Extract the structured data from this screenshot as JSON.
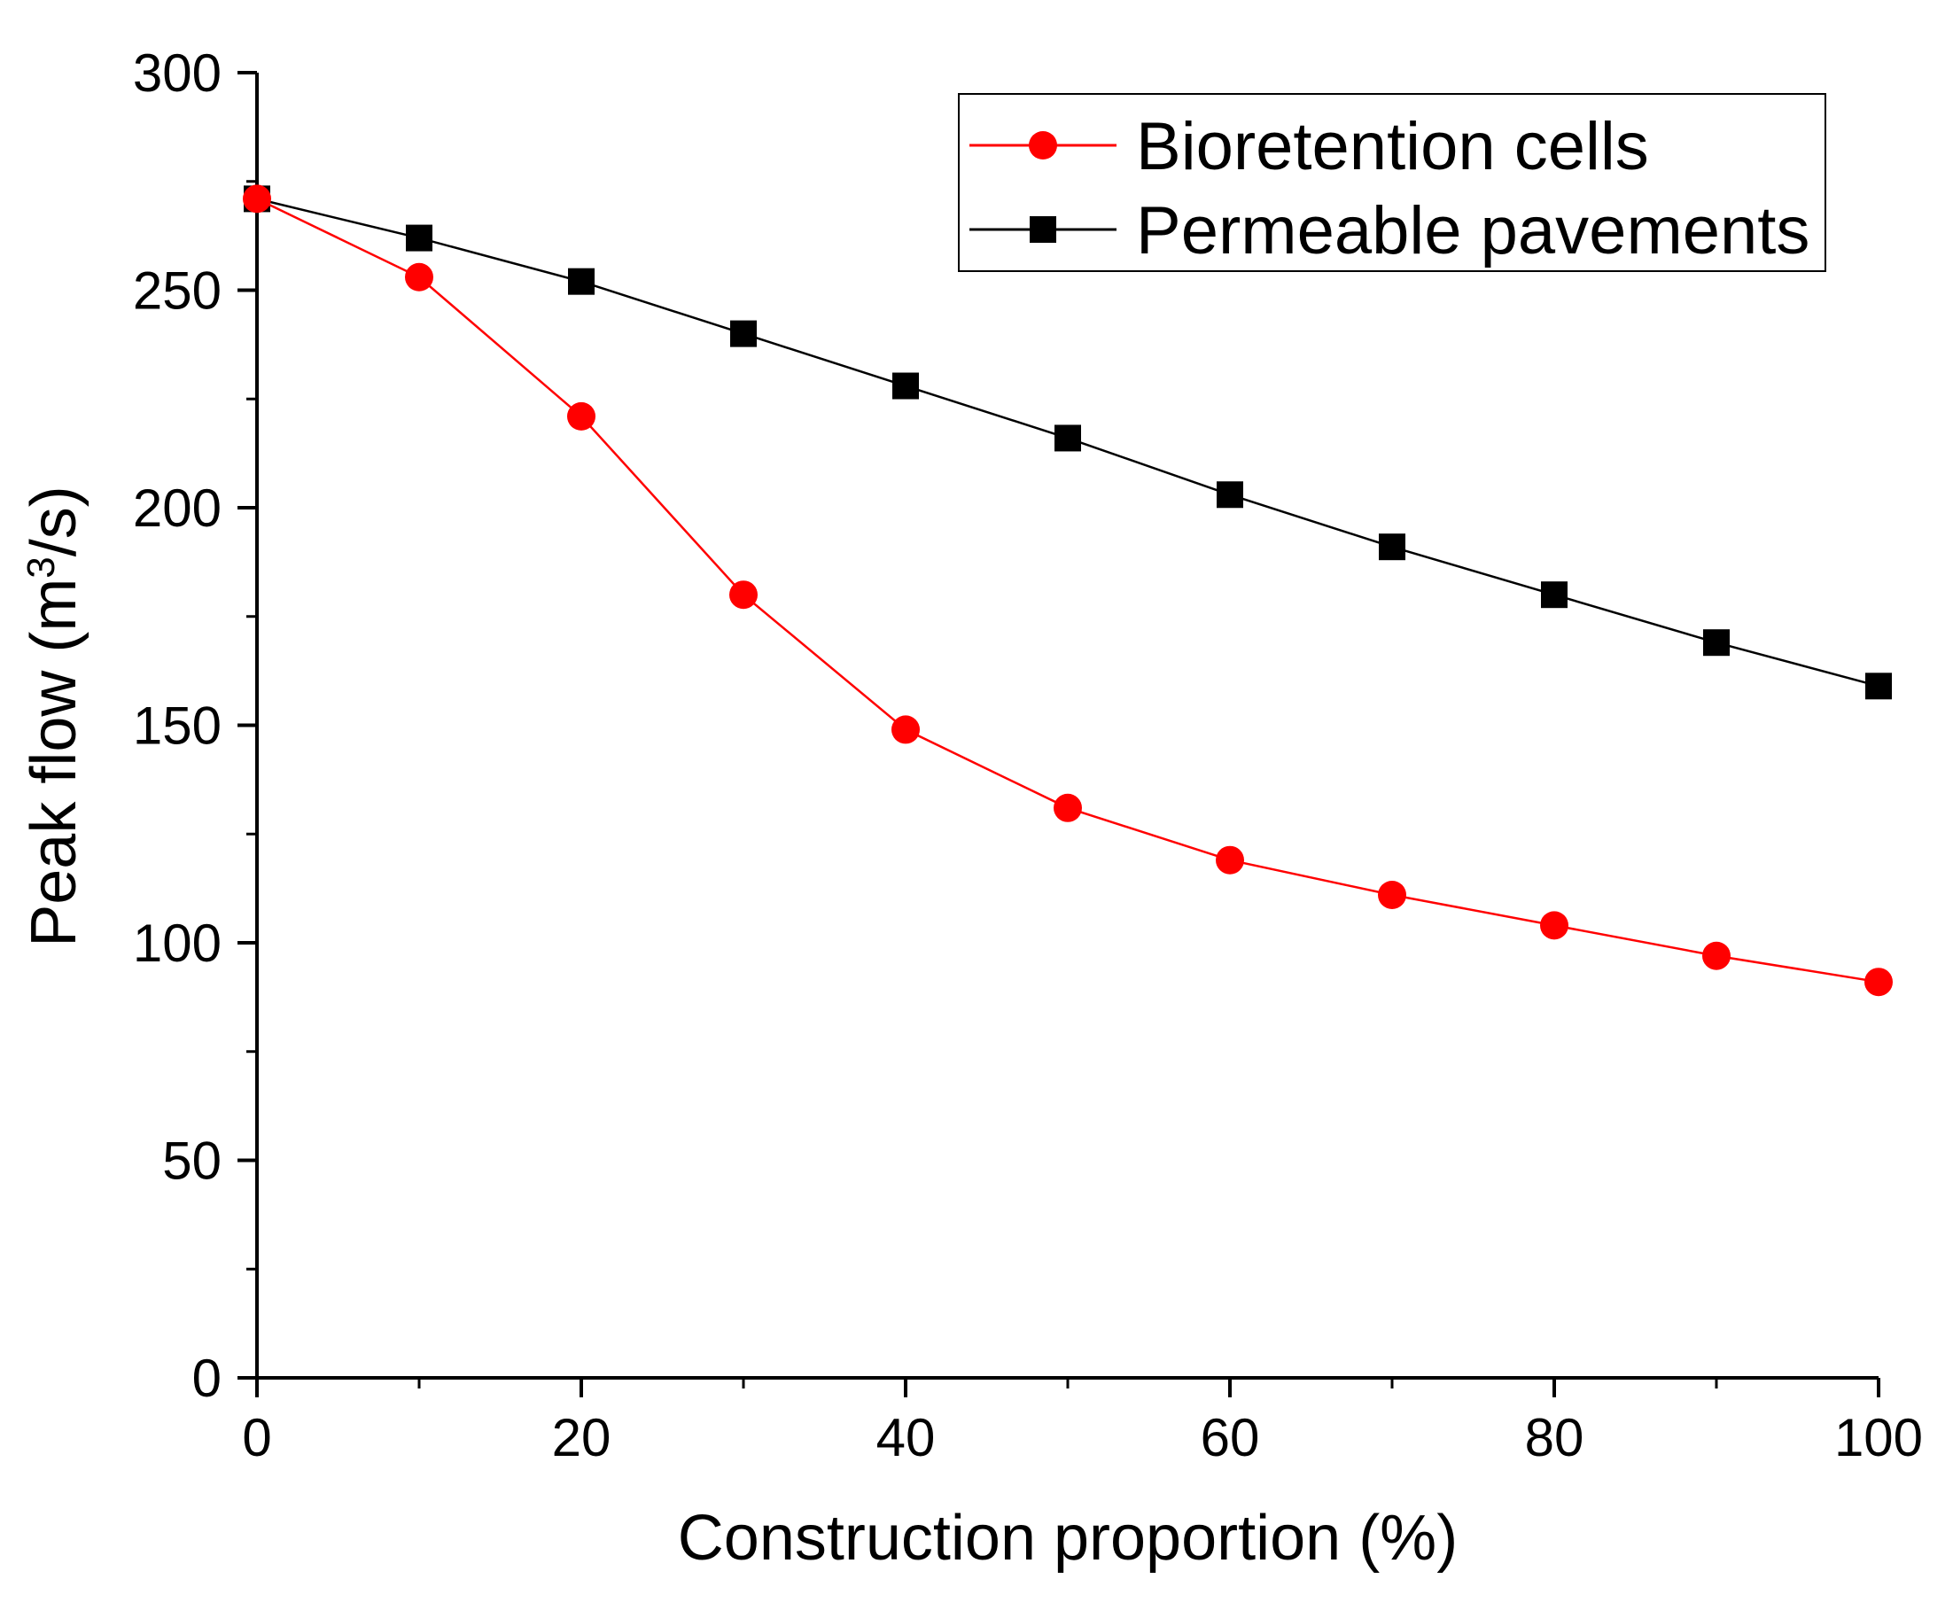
{
  "chart_data": {
    "type": "line",
    "title": "",
    "xlabel": "Construction proportion (%)",
    "ylabel": {
      "main": "Peak flow (m",
      "superscript": "3",
      "suffix": "/s)"
    },
    "xlim": [
      0,
      100
    ],
    "ylim": [
      0,
      300
    ],
    "x_ticks": [
      0,
      20,
      40,
      60,
      80,
      100
    ],
    "x_tick_labels": [
      "0",
      "20",
      "40",
      "60",
      "80",
      "100"
    ],
    "x_minor_ticks": [
      10,
      30,
      50,
      70,
      90
    ],
    "y_ticks": [
      0,
      50,
      100,
      150,
      200,
      250,
      300
    ],
    "y_tick_labels": [
      "0",
      "50",
      "100",
      "150",
      "200",
      "250",
      "300"
    ],
    "y_minor_ticks": [
      25,
      75,
      125,
      175,
      225,
      275
    ],
    "grid": false,
    "legend_position": "top-right",
    "x": [
      0,
      10,
      20,
      30,
      40,
      50,
      60,
      70,
      80,
      90,
      100
    ],
    "series": [
      {
        "name": "Bioretention cells",
        "color": "#ff0000",
        "marker": "circle",
        "values": [
          271,
          253,
          221,
          180,
          149,
          131,
          119,
          111,
          104,
          97,
          91
        ]
      },
      {
        "name": "Permeable pavements",
        "color": "#000000",
        "marker": "square",
        "values": [
          271,
          262,
          252,
          240,
          228,
          216,
          203,
          191,
          180,
          169,
          159
        ]
      }
    ]
  }
}
